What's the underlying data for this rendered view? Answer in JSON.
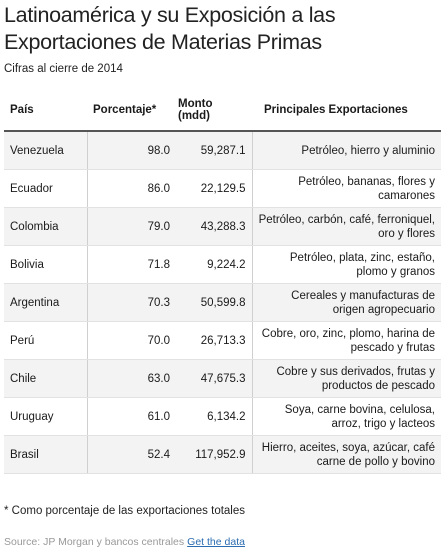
{
  "title": "Latinoamérica y su Exposición a las Exportaciones de Materias Primas",
  "subtitle": "Cifras al cierre de 2014",
  "chart_data": {
    "type": "table",
    "columns": [
      "País",
      "Porcentaje*",
      "Monto (mdd)",
      "Principales Exportaciones"
    ],
    "rows": [
      {
        "pais": "Venezuela",
        "porcentaje": "98.0",
        "monto": "59,287.1",
        "exportaciones": "Petróleo, hierro y aluminio"
      },
      {
        "pais": "Ecuador",
        "porcentaje": "86.0",
        "monto": "22,129.5",
        "exportaciones": "Petróleo, bananas, flores y camarones"
      },
      {
        "pais": "Colombia",
        "porcentaje": "79.0",
        "monto": "43,288.3",
        "exportaciones": "Petróleo, carbón, café, ferroniquel, oro y flores"
      },
      {
        "pais": "Bolivia",
        "porcentaje": "71.8",
        "monto": "9,224.2",
        "exportaciones": "Petróleo, plata, zinc, estaño, plomo y granos"
      },
      {
        "pais": "Argentina",
        "porcentaje": "70.3",
        "monto": "50,599.8",
        "exportaciones": "Cereales y manufacturas de origen agropecuario"
      },
      {
        "pais": "Perú",
        "porcentaje": "70.0",
        "monto": "26,713.3",
        "exportaciones": "Cobre, oro, zinc, plomo, harina de pescado y frutas"
      },
      {
        "pais": "Chile",
        "porcentaje": "63.0",
        "monto": "47,675.3",
        "exportaciones": "Cobre y sus derivados, frutas y productos de pescado"
      },
      {
        "pais": "Uruguay",
        "porcentaje": "61.0",
        "monto": "6,134.2",
        "exportaciones": "Soya, carne bovina, celulosa, arroz, trigo y lacteos"
      },
      {
        "pais": "Brasil",
        "porcentaje": "52.4",
        "monto": "117,952.9",
        "exportaciones": "Hierro, aceites, soya, azúcar, café carne de pollo y bovino"
      }
    ]
  },
  "footnote": "* Como porcentaje de las exportaciones totales",
  "source": {
    "text": "Source: JP Morgan y bancos centrales",
    "link_label": "Get the data"
  },
  "colors": {
    "row_stripe": "#f3f3f3",
    "link": "#2b6cb0",
    "source_text": "#999999"
  }
}
